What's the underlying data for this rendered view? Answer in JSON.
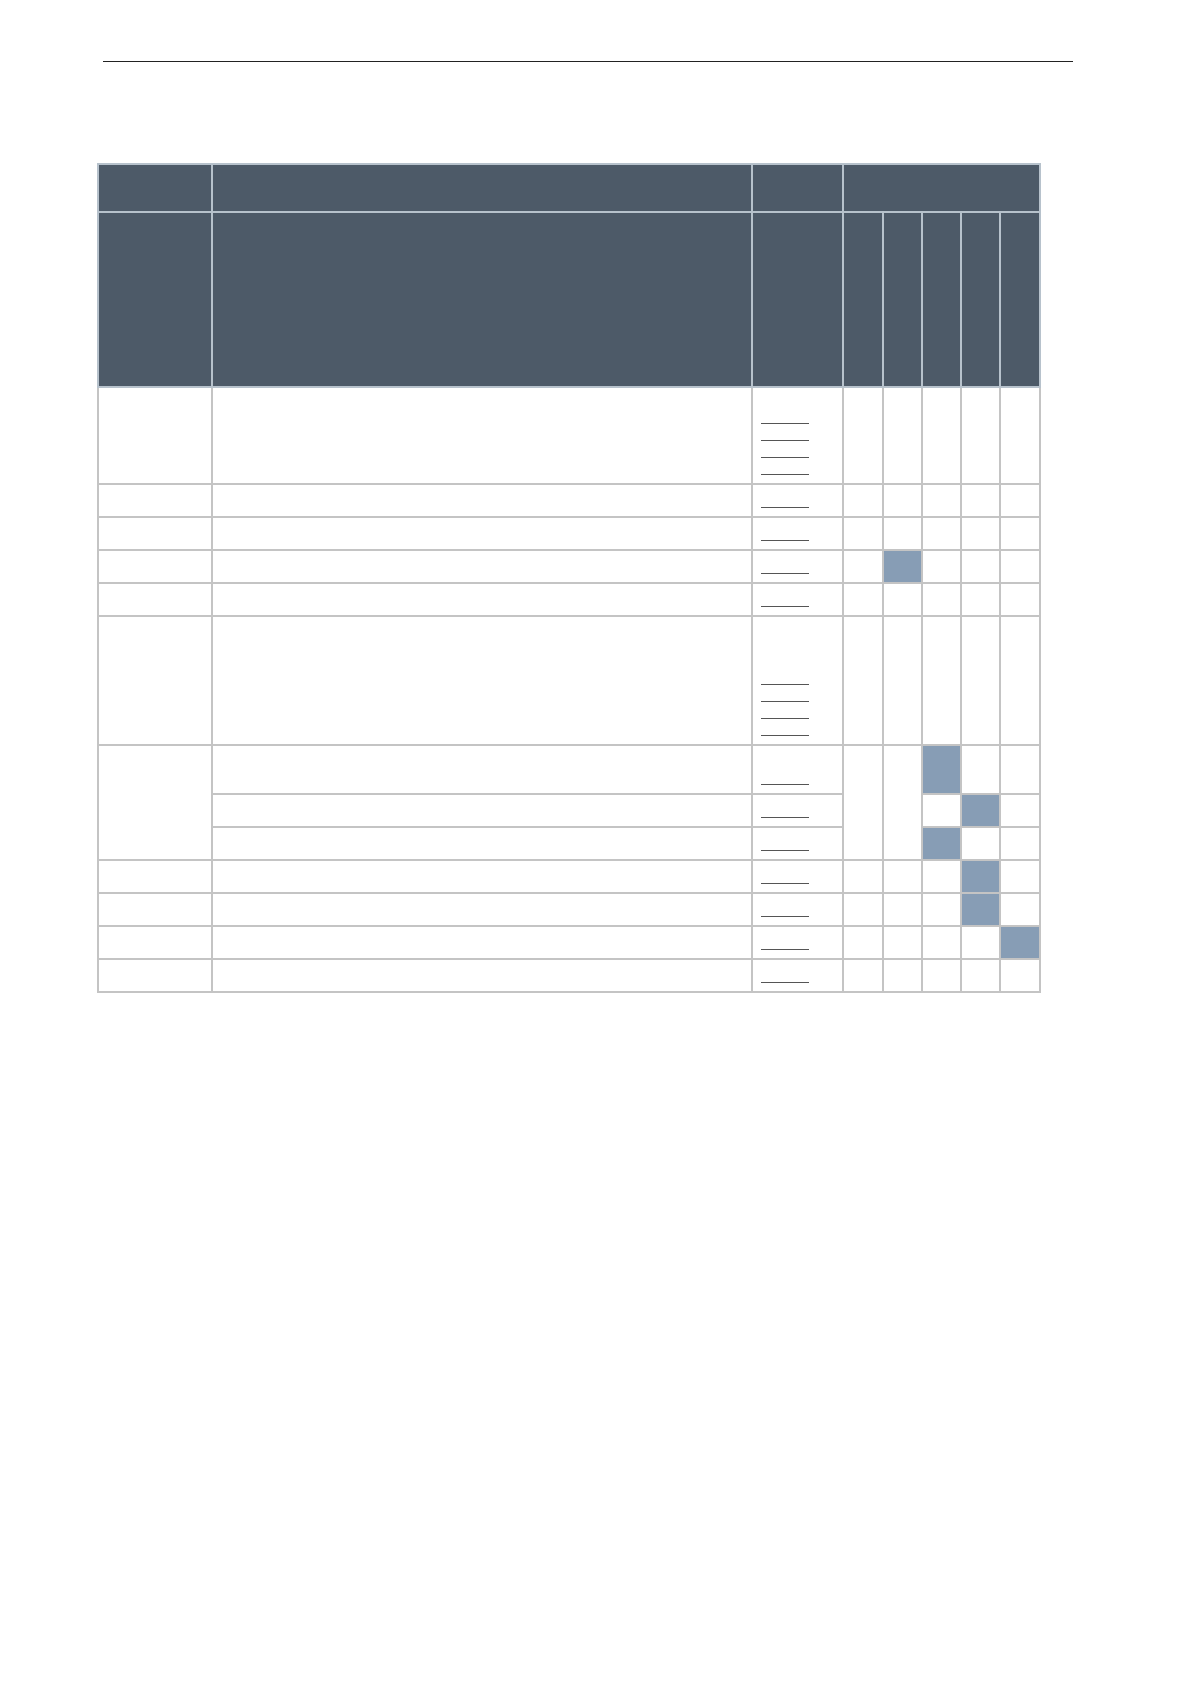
{
  "colors": {
    "header": "#4d5a68",
    "marked_cell": "#879db5",
    "border": "#c4c4c4"
  },
  "check_columns": 5,
  "rows": [
    {
      "links": 4,
      "marked": null
    },
    {
      "links": 1,
      "marked": null
    },
    {
      "links": 1,
      "marked": null
    },
    {
      "links": 1,
      "marked": 1
    },
    {
      "links": 1,
      "marked": null
    },
    {
      "links": 4,
      "marked": null
    },
    {
      "links": 1,
      "marked": 2,
      "group_start": 3
    },
    {
      "links": 1,
      "marked": 3,
      "group_member": true
    },
    {
      "links": 1,
      "marked": 2,
      "group_member": true
    },
    {
      "links": 1,
      "marked": 3
    },
    {
      "links": 1,
      "marked": 3
    },
    {
      "links": 1,
      "marked": 4
    },
    {
      "links": 1,
      "marked": null
    }
  ]
}
